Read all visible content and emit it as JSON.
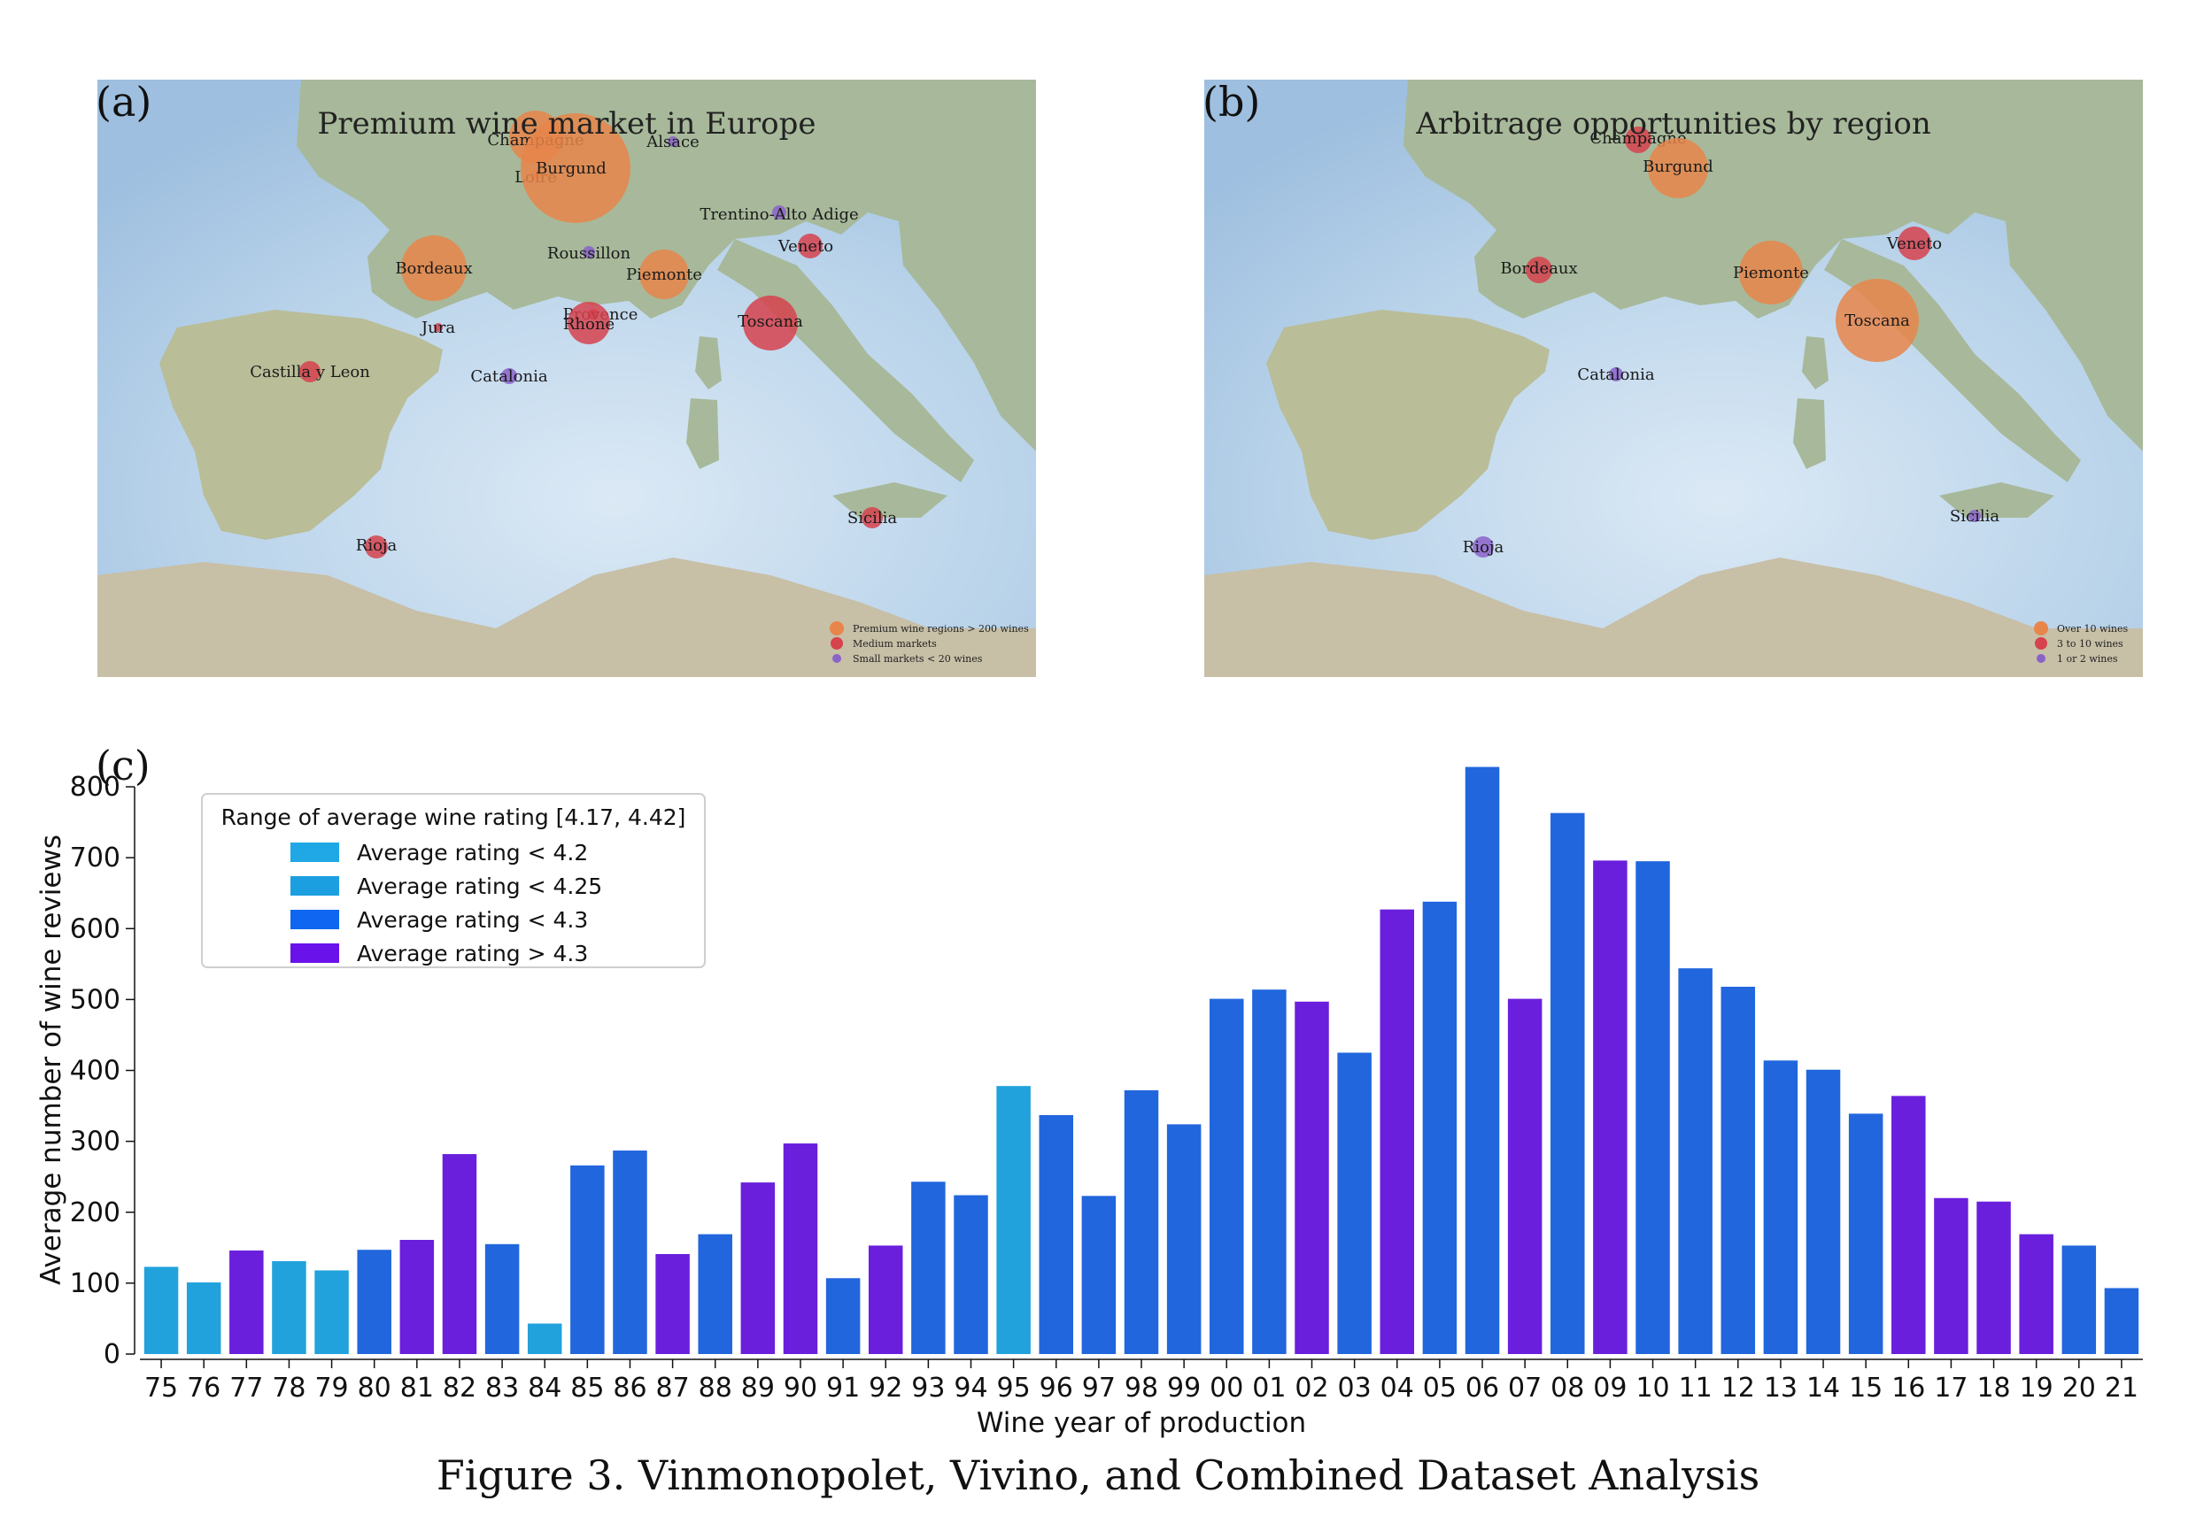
{
  "figure": {
    "caption": "Figure 3. Vinmonopolet, Vivino, and Combined Dataset Analysis"
  },
  "map_a": {
    "panel_label": "(a)",
    "title": "Premium wine market in Europe",
    "regions": [
      {
        "name": "Champagne",
        "category": "premium"
      },
      {
        "name": "Loire",
        "category": "premium"
      },
      {
        "name": "Burgund",
        "category": "premium"
      },
      {
        "name": "Alsace",
        "category": "small"
      },
      {
        "name": "Trentino-Alto Adige",
        "category": "small"
      },
      {
        "name": "Veneto",
        "category": "medium"
      },
      {
        "name": "Roussillon",
        "category": "small"
      },
      {
        "name": "Bordeaux",
        "category": "premium"
      },
      {
        "name": "Piemonte",
        "category": "premium"
      },
      {
        "name": "Jura",
        "category": "medium"
      },
      {
        "name": "Provence",
        "category": "medium"
      },
      {
        "name": "Rhone",
        "category": "medium"
      },
      {
        "name": "Toscana",
        "category": "medium"
      },
      {
        "name": "Castilla y Leon",
        "category": "medium"
      },
      {
        "name": "Catalonia",
        "category": "small"
      },
      {
        "name": "Sicilia",
        "category": "medium"
      },
      {
        "name": "Rioja",
        "category": "medium"
      }
    ],
    "legend": [
      {
        "label": "Premium wine regions > 200 wines",
        "color": "#e8854a"
      },
      {
        "label": "Medium markets",
        "color": "#d6424d"
      },
      {
        "label": "Small markets < 20 wines",
        "color": "#8a63c9"
      }
    ]
  },
  "map_b": {
    "panel_label": "(b)",
    "title": "Arbitrage opportunities by region",
    "regions": [
      {
        "name": "Champagne",
        "category": "mid"
      },
      {
        "name": "Burgund",
        "category": "over"
      },
      {
        "name": "Bordeaux",
        "category": "mid"
      },
      {
        "name": "Piemonte",
        "category": "over"
      },
      {
        "name": "Veneto",
        "category": "mid"
      },
      {
        "name": "Toscana",
        "category": "over"
      },
      {
        "name": "Catalonia",
        "category": "low"
      },
      {
        "name": "Sicilia",
        "category": "low"
      },
      {
        "name": "Rioja",
        "category": "low"
      }
    ],
    "legend": [
      {
        "label": "Over 10 wines",
        "color": "#e8854a"
      },
      {
        "label": "3 to 10 wines",
        "color": "#d6424d"
      },
      {
        "label": "1 or 2 wines",
        "color": "#8a63c9"
      }
    ]
  },
  "chart_data": {
    "type": "bar",
    "panel_label": "(c)",
    "xlabel": "Wine year of production",
    "ylabel": "Average number of wine reviews",
    "ylim": [
      0,
      830
    ],
    "yticks": [
      0,
      100,
      200,
      300,
      400,
      500,
      600,
      700,
      800
    ],
    "categories": [
      "75",
      "76",
      "77",
      "78",
      "79",
      "80",
      "81",
      "82",
      "83",
      "84",
      "85",
      "86",
      "87",
      "88",
      "89",
      "90",
      "91",
      "92",
      "93",
      "94",
      "95",
      "96",
      "97",
      "98",
      "99",
      "00",
      "01",
      "02",
      "03",
      "04",
      "05",
      "06",
      "07",
      "08",
      "09",
      "10",
      "11",
      "12",
      "13",
      "14",
      "15",
      "16",
      "17",
      "18",
      "19",
      "20",
      "21"
    ],
    "values": [
      123,
      101,
      146,
      131,
      118,
      147,
      161,
      282,
      155,
      43,
      266,
      287,
      141,
      169,
      242,
      297,
      107,
      153,
      243,
      224,
      378,
      337,
      223,
      372,
      324,
      501,
      514,
      497,
      425,
      627,
      638,
      828,
      501,
      763,
      696,
      695,
      544,
      518,
      414,
      401,
      339,
      364,
      220,
      215,
      169,
      153,
      93
    ],
    "rating_class": [
      1,
      1,
      3,
      1,
      1,
      2,
      3,
      3,
      2,
      1,
      2,
      2,
      3,
      2,
      3,
      3,
      2,
      3,
      2,
      2,
      1,
      2,
      2,
      2,
      2,
      2,
      2,
      3,
      2,
      3,
      2,
      2,
      3,
      2,
      3,
      2,
      2,
      2,
      2,
      2,
      2,
      3,
      3,
      3,
      3,
      2,
      2
    ],
    "legend_title": "Range of average wine rating [4.17, 4.42]",
    "legend_position": "top-left",
    "legend": [
      {
        "label": "Average rating < 4.2",
        "color": "#1fa8e5"
      },
      {
        "label": "Average rating < 4.25",
        "color": "#1b9fe0"
      },
      {
        "label": "Average rating < 4.3",
        "color": "#0f66f0"
      },
      {
        "label": "Average rating > 4.3",
        "color": "#6a12ea"
      }
    ],
    "bar_colors": [
      "#22a2dc",
      "#2166dd",
      "#6a1fdd"
    ],
    "grid": false
  }
}
